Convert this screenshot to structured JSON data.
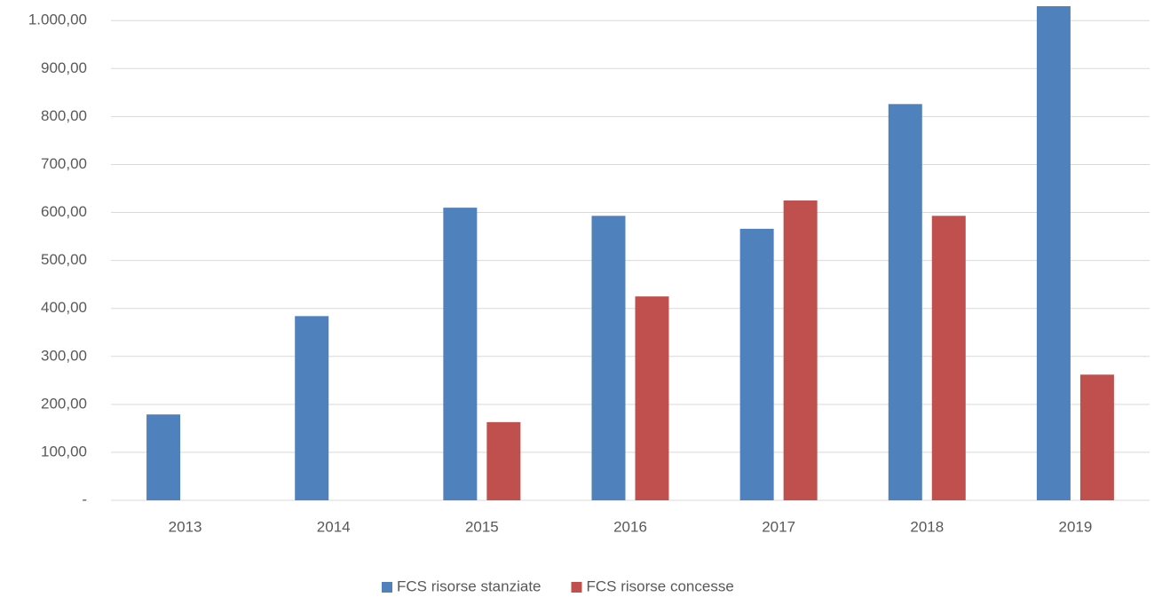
{
  "chart_data": {
    "type": "bar",
    "categories": [
      "2013",
      "2014",
      "2015",
      "2016",
      "2017",
      "2018",
      "2019"
    ],
    "series": [
      {
        "name": "FCS risorse stanziate",
        "color": "#4f81bd",
        "values": [
          179,
          384,
          610,
          593,
          566,
          826,
          1030
        ]
      },
      {
        "name": "FCS risorse concesse",
        "color": "#c0504d",
        "values": [
          null,
          null,
          163,
          425,
          625,
          593,
          262
        ]
      }
    ],
    "ylim": [
      0,
      1030
    ],
    "yticks": [
      {
        "value": 0,
        "label": "-"
      },
      {
        "value": 100,
        "label": "100,00"
      },
      {
        "value": 200,
        "label": "200,00"
      },
      {
        "value": 300,
        "label": "300,00"
      },
      {
        "value": 400,
        "label": "400,00"
      },
      {
        "value": 500,
        "label": "500,00"
      },
      {
        "value": 600,
        "label": "600,00"
      },
      {
        "value": 700,
        "label": "700,00"
      },
      {
        "value": 800,
        "label": "800,00"
      },
      {
        "value": 900,
        "label": "900,00"
      },
      {
        "value": 1000,
        "label": "1.000,00"
      }
    ],
    "grid": true,
    "legend": "bottom"
  }
}
